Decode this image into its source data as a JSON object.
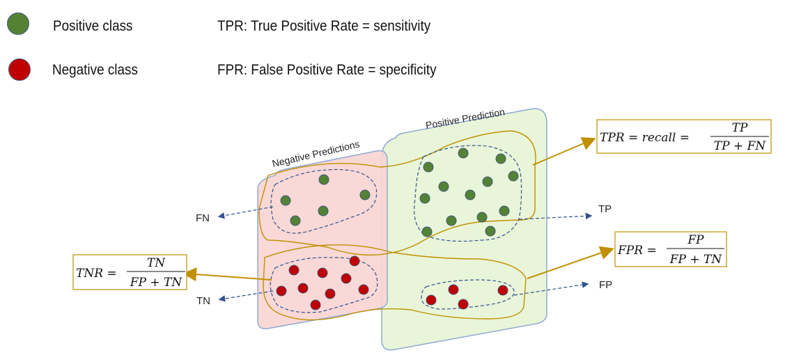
{
  "legend": {
    "positive": {
      "label": "Positive class",
      "color": "#548235"
    },
    "negative": {
      "label": "Negative class",
      "color": "#c00000"
    },
    "tpr_def": "TPR: True Positive Rate = sensitivity",
    "fpr_def": "FPR: False Positive Rate = specificity"
  },
  "regions": {
    "negative_title": "Negative Predictions",
    "positive_title": "Positive Prediction",
    "negative_fill": "#f8d5d2",
    "positive_fill": "#e8f5d8"
  },
  "arrows": {
    "fn": "FN",
    "tn": "TN",
    "tp": "TP",
    "fp": "FP"
  },
  "formulas": {
    "tpr": {
      "lhs": "TPR = recall =",
      "num": "TP",
      "den": "TP + FN"
    },
    "fpr": {
      "lhs": "FPR =",
      "num": "FP",
      "den": "FP + TN"
    },
    "tnr": {
      "lhs": "TNR =",
      "num": "TN",
      "den": "FP + TN"
    }
  },
  "colors": {
    "boundary": "#c09000",
    "dashed": "#2f528f",
    "box_border": "#bf9000"
  }
}
